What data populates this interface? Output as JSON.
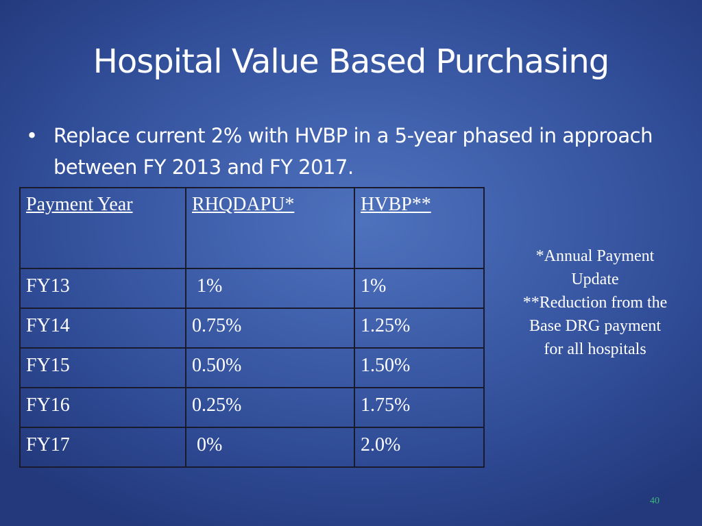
{
  "slide": {
    "title": "Hospital Value Based Purchasing",
    "bullet_symbol": "•",
    "bullet_text": "Replace current 2% with HVBP in a 5-year phased in approach between  FY 2013 and FY 2017.",
    "page_number": "40"
  },
  "table": {
    "headers": [
      "Payment Year",
      "RHQDAPU*",
      "HVBP**"
    ],
    "rows": [
      [
        "FY13",
        " 1%",
        "1%"
      ],
      [
        "FY14",
        "0.75%",
        "1.25%"
      ],
      [
        "FY15",
        "0.50%",
        "1.50%"
      ],
      [
        "FY16",
        "0.25%",
        "1.75%"
      ],
      [
        "FY17",
        " 0%",
        "2.0%"
      ]
    ]
  },
  "notes": {
    "line1": "*Annual Payment",
    "line2": "Update",
    "line3": "**Reduction from the",
    "line4": "Base DRG payment",
    "line5": "for all hospitals"
  },
  "colors": {
    "background": "#4a6cb8",
    "text": "#ffffff",
    "page_number": "#3bb87a",
    "table_border": "#1a1a2e"
  }
}
